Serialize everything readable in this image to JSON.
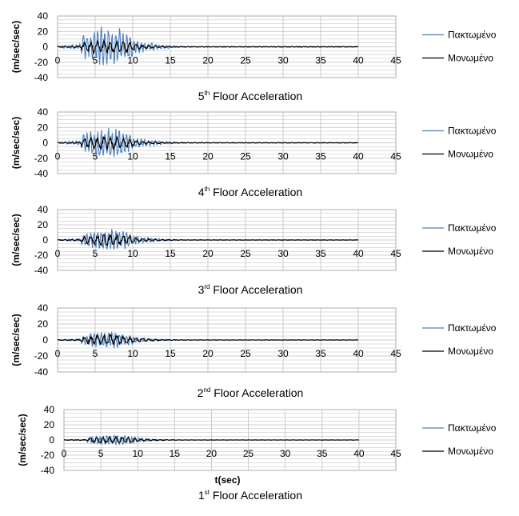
{
  "colors": {
    "pinned": "#4f81bd",
    "isolated": "#000000",
    "grid": "#bfbfbf"
  },
  "xlabel": "t(sec)",
  "ylabel": "(m/sec/sec)",
  "chart_data": [
    {
      "type": "line",
      "title": "5",
      "title_sup": "th",
      "title_rest": " Floor Acceleration",
      "xlabel": "",
      "ylabel": "(m/sec/sec)",
      "xlim": [
        0,
        45
      ],
      "ylim": [
        -40,
        40
      ],
      "xticks": [
        0,
        5,
        10,
        15,
        20,
        25,
        30,
        35,
        40,
        45
      ],
      "yticks": [
        40,
        20,
        0,
        -20,
        -40
      ],
      "legend": "right",
      "series": [
        {
          "name": "Πακτωμένο",
          "color": "#4f81bd",
          "duration": 40,
          "peak": 28,
          "decay": 1.0
        },
        {
          "name": "Μονωμένο",
          "color": "#000000",
          "duration": 40,
          "peak": 10,
          "decay": 1.0
        }
      ]
    },
    {
      "type": "line",
      "title": "4",
      "title_sup": "th",
      "title_rest": " Floor Acceleration",
      "xlabel": "",
      "ylabel": "(m/sec/sec)",
      "xlim": [
        0,
        45
      ],
      "ylim": [
        -40,
        40
      ],
      "xticks": [
        0,
        5,
        10,
        15,
        20,
        25,
        30,
        35,
        40,
        45
      ],
      "yticks": [
        40,
        20,
        0,
        -20,
        -40
      ],
      "legend": "right",
      "series": [
        {
          "name": "Πακτωμένο",
          "color": "#4f81bd",
          "duration": 40,
          "peak": 22,
          "decay": 1.0
        },
        {
          "name": "Μονωμένο",
          "color": "#000000",
          "duration": 40,
          "peak": 9,
          "decay": 1.0
        }
      ]
    },
    {
      "type": "line",
      "title": "3",
      "title_sup": "rd",
      "title_rest": " Floor Acceleration",
      "xlabel": "",
      "ylabel": "(m/sec/sec)",
      "xlim": [
        0,
        45
      ],
      "ylim": [
        -40,
        40
      ],
      "xticks": [
        0,
        5,
        10,
        15,
        20,
        25,
        30,
        35,
        40,
        45
      ],
      "yticks": [
        40,
        20,
        0,
        -20,
        -40
      ],
      "legend": "right",
      "series": [
        {
          "name": "Πακτωμένο",
          "color": "#4f81bd",
          "duration": 40,
          "peak": 16,
          "decay": 1.0
        },
        {
          "name": "Μονωμένο",
          "color": "#000000",
          "duration": 40,
          "peak": 8,
          "decay": 1.0
        }
      ]
    },
    {
      "type": "line",
      "title": "2",
      "title_sup": "nd",
      "title_rest": " Floor Acceleration",
      "xlabel": "",
      "ylabel": "(m/sec/sec)",
      "xlim": [
        0,
        45
      ],
      "ylim": [
        -40,
        40
      ],
      "xticks": [
        0,
        5,
        10,
        15,
        20,
        25,
        30,
        35,
        40,
        45
      ],
      "yticks": [
        40,
        20,
        0,
        -20,
        -40
      ],
      "legend": "right",
      "series": [
        {
          "name": "Πακτωμένο",
          "color": "#4f81bd",
          "duration": 40,
          "peak": 11,
          "decay": 1.0
        },
        {
          "name": "Μονωμένο",
          "color": "#000000",
          "duration": 40,
          "peak": 7,
          "decay": 1.0
        }
      ]
    },
    {
      "type": "line",
      "title": "1",
      "title_sup": "st",
      "title_rest": " Floor Acceleration",
      "xlabel": "t(sec)",
      "ylabel": "(m/sec/sec)",
      "xlim": [
        0,
        45
      ],
      "ylim": [
        -40,
        40
      ],
      "xticks": [
        0,
        5,
        10,
        15,
        20,
        25,
        30,
        35,
        40,
        45
      ],
      "yticks": [
        40,
        20,
        0,
        -20,
        -40
      ],
      "legend": "right",
      "series": [
        {
          "name": "Πακτωμένο",
          "color": "#4f81bd",
          "duration": 40,
          "peak": 7,
          "decay": 1.0
        },
        {
          "name": "Μονωμένο",
          "color": "#000000",
          "duration": 40,
          "peak": 5,
          "decay": 1.0
        }
      ]
    }
  ]
}
